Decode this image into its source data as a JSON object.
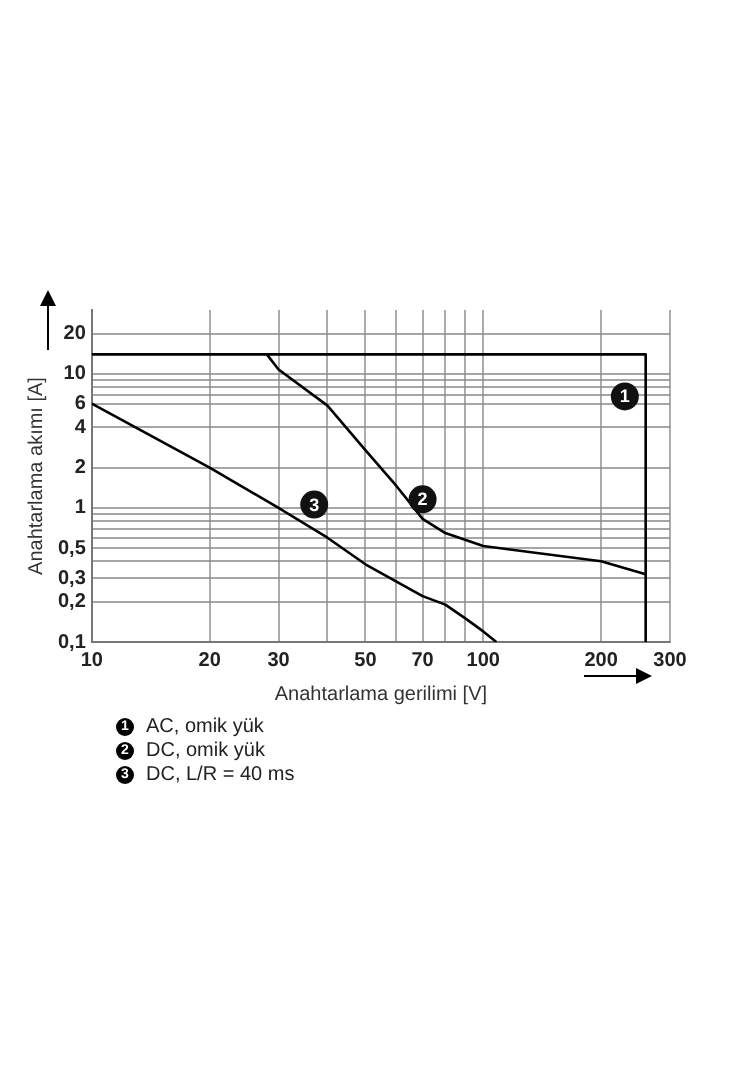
{
  "chart_data": {
    "type": "line",
    "xlabel": "Anahtarlama gerilimi [V]",
    "ylabel": "Anahtarlama akımı [A]",
    "log": "xy",
    "grid": true,
    "legend": "bottom left",
    "marker": "none",
    "line_style": "solid",
    "xlim": [
      10,
      300
    ],
    "ylim": [
      0.1,
      30
    ],
    "xticks": [
      10,
      20,
      30,
      {
        "value": 40,
        "label": null
      },
      50,
      {
        "value": 60,
        "label": null
      },
      70,
      {
        "value": 80,
        "label": null
      },
      {
        "value": 90,
        "label": null
      },
      100,
      200,
      300
    ],
    "yticks": [
      {
        "value": 0.1,
        "label": "0,1"
      },
      {
        "value": 0.2,
        "label": "0,2"
      },
      {
        "value": 0.3,
        "label": "0,3"
      },
      {
        "value": 0.4,
        "label": null
      },
      {
        "value": 0.5,
        "label": "0,5"
      },
      {
        "value": 0.6,
        "label": null
      },
      {
        "value": 0.7,
        "label": null
      },
      {
        "value": 0.8,
        "label": null
      },
      {
        "value": 0.9,
        "label": null
      },
      1,
      2,
      4,
      6,
      {
        "value": 7,
        "label": null
      },
      {
        "value": 8,
        "label": null
      },
      {
        "value": 9,
        "label": null
      },
      10,
      20
    ],
    "series": [
      {
        "name": "AC, omik yük",
        "color": "#000000",
        "x": [
          10,
          260,
          260
        ],
        "values": [
          14,
          14,
          0.1
        ]
      },
      {
        "name": "DC, omik yük",
        "color": "#000000",
        "x": [
          28,
          30,
          40,
          50,
          60,
          70,
          80,
          100,
          200,
          260
        ],
        "values": [
          14,
          10.8,
          5.8,
          2.7,
          1.46,
          0.83,
          0.65,
          0.52,
          0.4,
          0.32
        ]
      },
      {
        "name": "DC, L/R = 40 ms",
        "color": "#000000",
        "x": [
          10,
          20,
          30,
          40,
          50,
          70,
          80,
          90,
          100,
          108
        ],
        "values": [
          6,
          2,
          1,
          0.6,
          0.38,
          0.22,
          0.19,
          0.15,
          0.12,
          0.1
        ]
      }
    ],
    "annotations": [
      {
        "text": "1",
        "x": 230,
        "y": 6.8
      },
      {
        "text": "2",
        "x": 70,
        "y": 1.16
      },
      {
        "text": "3",
        "x": 37,
        "y": 1.06
      }
    ]
  }
}
